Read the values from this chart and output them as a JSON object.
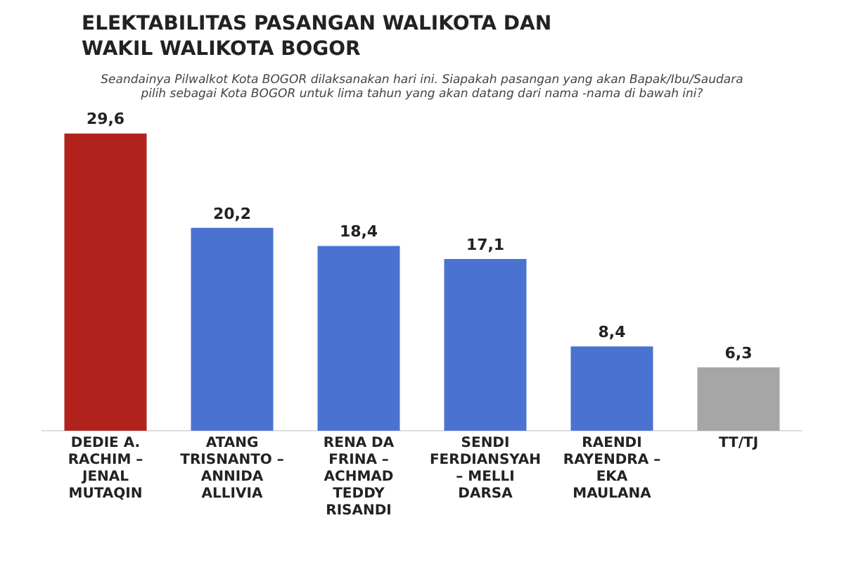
{
  "chart_data": {
    "type": "bar",
    "title": "ELEKTABILITAS PASANGAN WALIKOTA DAN WAKIL WALIKOTA BOGOR",
    "subtitle": "Seandainya Pilwalkot Kota  BOGOR dilaksanakan hari ini. Siapakah  pasangan yang akan Bapak/Ibu/Saudara pilih sebagai Kota BOGOR untuk lima tahun yang akan datang dari nama  -nama di bawah ini?",
    "categories": [
      "DEDIE A. RACHIM – JENAL MUTAQIN",
      "ATANG TRISNANTO – ANNIDA ALLIVIA",
      "RENA DA FRINA – ACHMAD TEDDY RISANDI",
      "SENDI FERDIANSYAH – MELLI DARSA",
      "RAENDI RAYENDRA – EKA MAULANA",
      "TT/TJ"
    ],
    "values": [
      29.6,
      20.2,
      18.4,
      17.1,
      8.4,
      6.3
    ],
    "colors": [
      "#b2221c",
      "#4a73d1",
      "#4a73d1",
      "#4a73d1",
      "#4a73d1",
      "#a6a6a6"
    ],
    "value_labels": [
      "29,6",
      "20,2",
      "18,4",
      "17,1",
      "8,4",
      "6,3"
    ],
    "grid": false,
    "legend": false
  }
}
